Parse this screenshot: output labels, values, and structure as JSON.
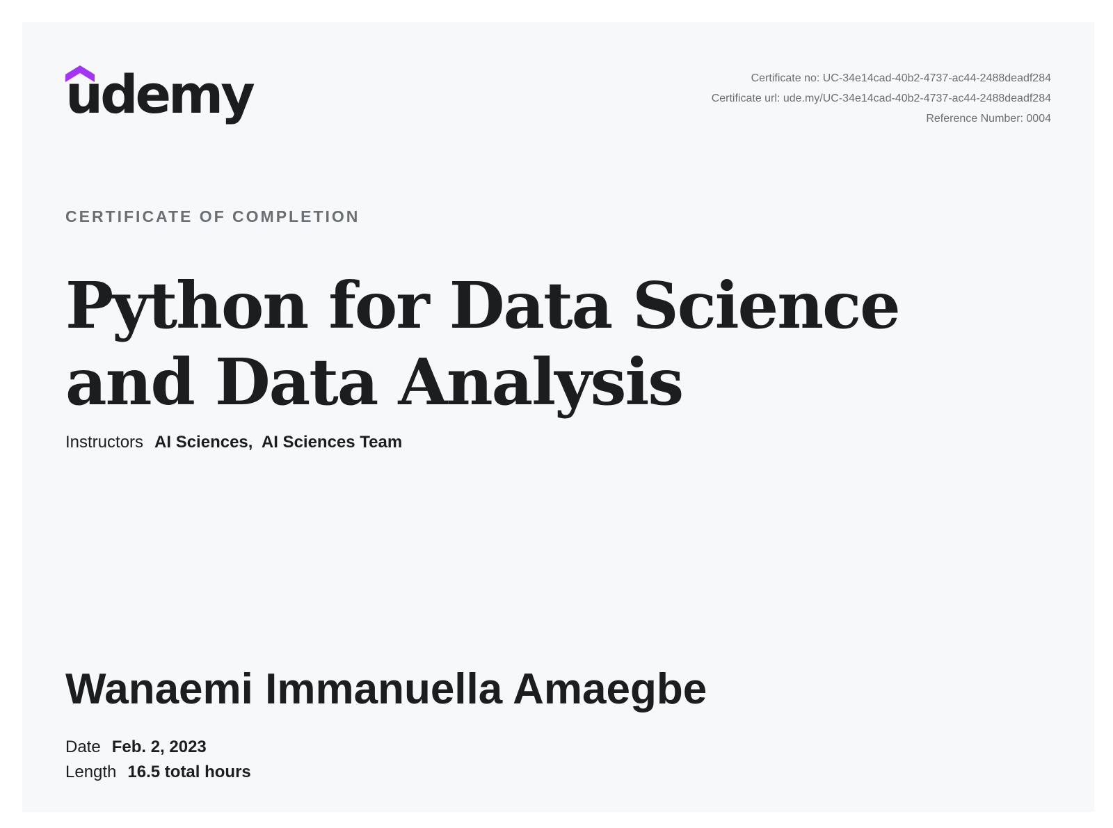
{
  "brand": {
    "name": "udemy",
    "accent_color": "#a435f0",
    "logo_icon": "graduation-cap-icon"
  },
  "meta": {
    "certificate_no": "Certificate no: UC-34e14cad-40b2-4737-ac44-2488deadf284",
    "certificate_url": "Certificate url: ude.my/UC-34e14cad-40b2-4737-ac44-2488deadf284",
    "reference_number": "Reference Number: 0004"
  },
  "certificate": {
    "kicker": "CERTIFICATE OF COMPLETION",
    "course_title": "Python for Data Science and Data Analysis",
    "instructors_label": "Instructors",
    "instructors": "AI Sciences,  AI Sciences Team",
    "recipient": "Wanaemi Immanuella Amaegbe",
    "date_label": "Date",
    "date_value": "Feb. 2, 2023",
    "length_label": "Length",
    "length_value": "16.5 total hours"
  }
}
